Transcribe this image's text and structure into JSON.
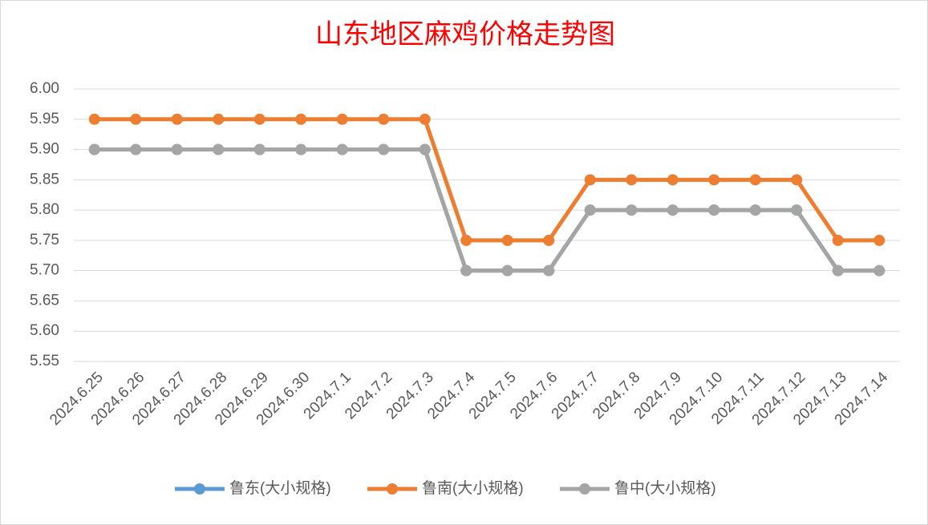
{
  "chart_data": {
    "type": "line",
    "title": "山东地区麻鸡价格走势图",
    "categories": [
      "2024.6.25",
      "2024.6.26",
      "2024.6.27",
      "2024.6.28",
      "2024.6.29",
      "2024.6.30",
      "2024.7.1",
      "2024.7.2",
      "2024.7.3",
      "2024.7.4",
      "2024.7.5",
      "2024.7.6",
      "2024.7.7",
      "2024.7.8",
      "2024.7.9",
      "2024.7.10",
      "2024.7.11",
      "2024.7.12",
      "2024.7.13",
      "2024.7.14"
    ],
    "series": [
      {
        "name": "鲁东(大小规格)",
        "color": "#5b9bd5",
        "values": [
          5.9,
          5.9,
          5.9,
          5.9,
          5.9,
          5.9,
          5.9,
          5.9,
          5.9,
          5.7,
          5.7,
          5.7,
          5.8,
          5.8,
          5.8,
          5.8,
          5.8,
          5.8,
          5.7,
          5.7
        ]
      },
      {
        "name": "鲁南(大小规格)",
        "color": "#ed7d31",
        "values": [
          5.95,
          5.95,
          5.95,
          5.95,
          5.95,
          5.95,
          5.95,
          5.95,
          5.95,
          5.75,
          5.75,
          5.75,
          5.85,
          5.85,
          5.85,
          5.85,
          5.85,
          5.85,
          5.75,
          5.75
        ]
      },
      {
        "name": "鲁中(大小规格)",
        "color": "#a5a5a5",
        "values": [
          5.9,
          5.9,
          5.9,
          5.9,
          5.9,
          5.9,
          5.9,
          5.9,
          5.9,
          5.7,
          5.7,
          5.7,
          5.8,
          5.8,
          5.8,
          5.8,
          5.8,
          5.8,
          5.7,
          5.7
        ]
      }
    ],
    "ylim": [
      5.55,
      6.0
    ],
    "yticks": [
      {
        "value": 5.55,
        "label": "5.55"
      },
      {
        "value": 5.6,
        "label": "5.60"
      },
      {
        "value": 5.65,
        "label": "5.65"
      },
      {
        "value": 5.7,
        "label": "5.70"
      },
      {
        "value": 5.75,
        "label": "5.75"
      },
      {
        "value": 5.8,
        "label": "5.80"
      },
      {
        "value": 5.85,
        "label": "5.85"
      },
      {
        "value": 5.9,
        "label": "5.90"
      },
      {
        "value": 5.95,
        "label": "5.95"
      },
      {
        "value": 6.0,
        "label": "6.00"
      }
    ],
    "grid": true,
    "legend": "bottom"
  }
}
